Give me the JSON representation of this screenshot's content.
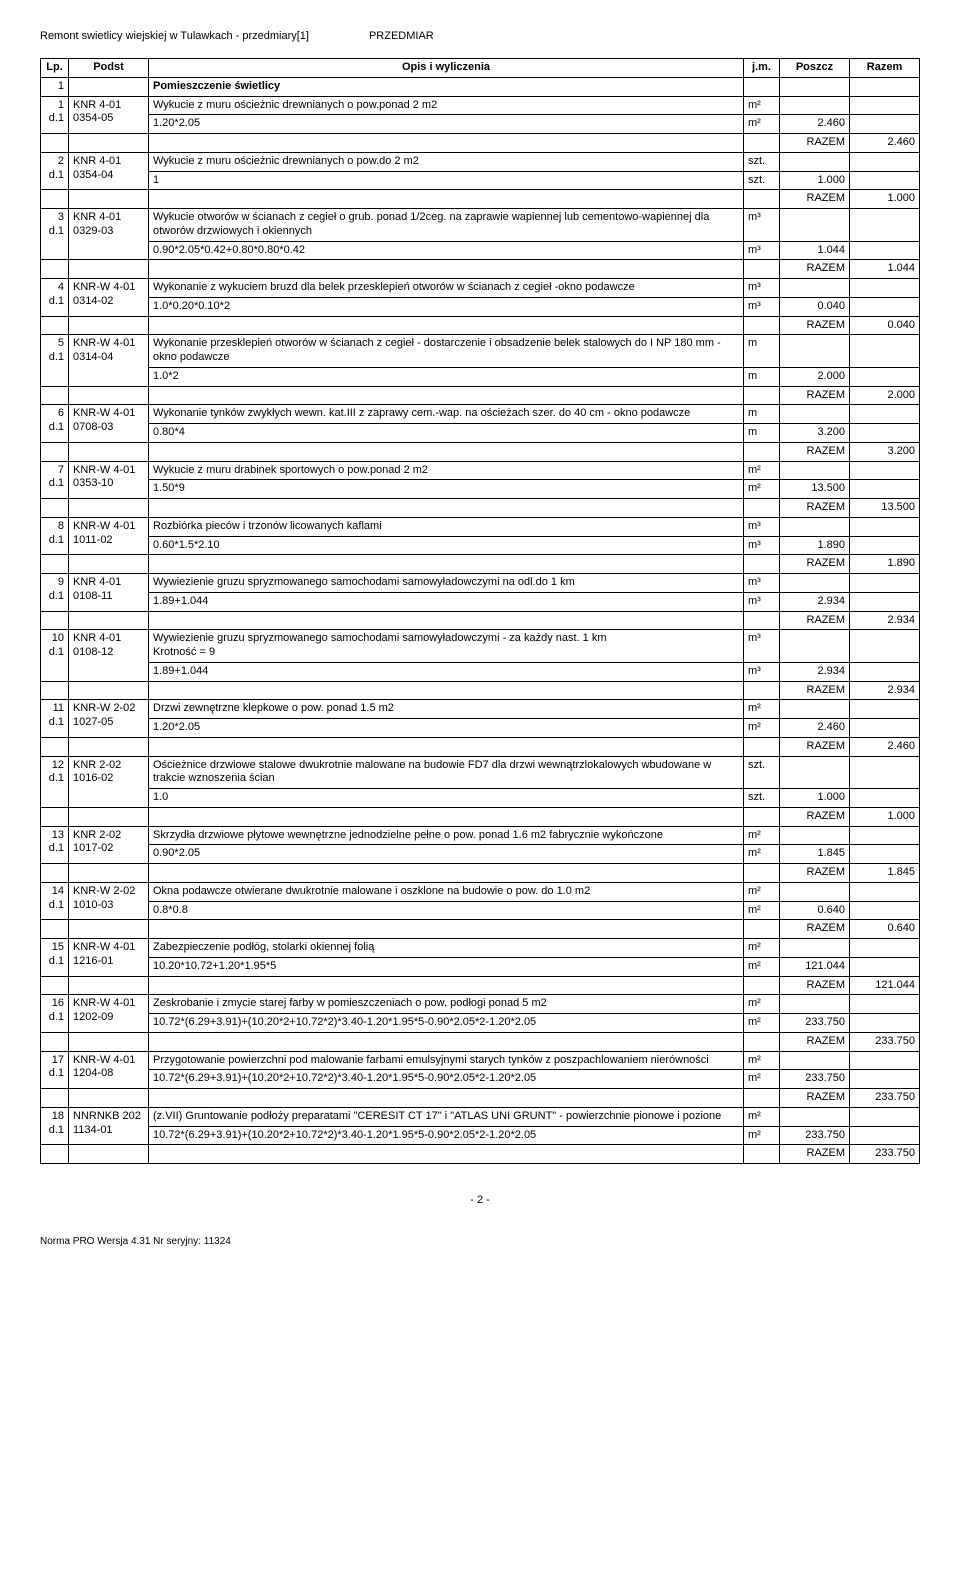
{
  "header": {
    "left": "Remont swietlicy wiejskiej w Tulawkach - przedmiary[1]",
    "right": "PRZEDMIAR"
  },
  "columns": [
    "Lp.",
    "Podst",
    "Opis i wyliczenia",
    "j.m.",
    "Poszcz",
    "Razem"
  ],
  "section": {
    "lp": "1",
    "title": "Pomieszczenie świetlicy"
  },
  "rows": [
    {
      "lp": "1",
      "dgroup": "d.1",
      "podst": "KNR 4-01 0354-05",
      "desc": "Wykucie z muru ościeżnic drewnianych o pow.ponad 2 m2",
      "jm": "m²",
      "calcs": [
        {
          "expr": "1.20*2.05",
          "jm": "m²",
          "val": "2.460"
        }
      ],
      "razem": "2.460"
    },
    {
      "lp": "2",
      "dgroup": "d.1",
      "podst": "KNR 4-01 0354-04",
      "desc": "Wykucie z muru ościeżnic drewnianych o pow.do 2 m2",
      "jm": "szt.",
      "calcs": [
        {
          "expr": "1",
          "jm": "szt.",
          "val": "1.000"
        }
      ],
      "razem": "1.000"
    },
    {
      "lp": "3",
      "dgroup": "d.1",
      "podst": "KNR 4-01 0329-03",
      "desc": "Wykucie otworów w ścianach z cegieł o grub. ponad 1/2ceg. na zaprawie wapiennej lub cementowo-wapiennej dla otworów drzwiowych i okiennych",
      "jm": "m³",
      "calcs": [
        {
          "expr": "0.90*2.05*0.42+0.80*0.80*0.42",
          "jm": "m³",
          "val": "1.044"
        }
      ],
      "razem": "1.044"
    },
    {
      "lp": "4",
      "dgroup": "d.1",
      "podst": "KNR-W 4-01 0314-02",
      "desc": "Wykonanie z wykuciem bruzd dla belek przesklepień otworów w ścianach z cegieł -okno podawcze",
      "jm": "m³",
      "calcs": [
        {
          "expr": "1.0*0.20*0.10*2",
          "jm": "m³",
          "val": "0.040"
        }
      ],
      "razem": "0.040"
    },
    {
      "lp": "5",
      "dgroup": "d.1",
      "podst": "KNR-W 4-01 0314-04",
      "desc": "Wykonanie przesklepień otworów w ścianach z cegieł - dostarczenie i obsadzenie belek stalowych do I NP 180 mm - okno podawcze",
      "jm": "m",
      "calcs": [
        {
          "expr": "1.0*2",
          "jm": "m",
          "val": "2.000"
        }
      ],
      "razem": "2.000"
    },
    {
      "lp": "6",
      "dgroup": "d.1",
      "podst": "KNR-W 4-01 0708-03",
      "desc": "Wykonanie tynków zwykłych wewn. kat.III z zaprawy cem.-wap. na ościeżach szer. do 40 cm - okno podawcze",
      "jm": "m",
      "calcs": [
        {
          "expr": "0.80*4",
          "jm": "m",
          "val": "3.200"
        }
      ],
      "razem": "3.200"
    },
    {
      "lp": "7",
      "dgroup": "d.1",
      "podst": "KNR-W 4-01 0353-10",
      "desc": "Wykucie z muru drabinek  sportowych  o pow.ponad 2 m2",
      "jm": "m²",
      "calcs": [
        {
          "expr": "1.50*9",
          "jm": "m²",
          "val": "13.500"
        }
      ],
      "razem": "13.500"
    },
    {
      "lp": "8",
      "dgroup": "d.1",
      "podst": "KNR-W 4-01 1011-02",
      "desc": "Rozbiórka pieców i trzonów licowanych kaflami",
      "jm": "m³",
      "calcs": [
        {
          "expr": "0.60*1.5*2.10",
          "jm": "m³",
          "val": "1.890"
        }
      ],
      "razem": "1.890"
    },
    {
      "lp": "9",
      "dgroup": "d.1",
      "podst": "KNR 4-01 0108-11",
      "desc": "Wywiezienie gruzu spryzmowanego samochodami samowyładowczymi na odl.do 1 km",
      "jm": "m³",
      "calcs": [
        {
          "expr": "1.89+1.044",
          "jm": "m³",
          "val": "2.934"
        }
      ],
      "razem": "2.934"
    },
    {
      "lp": "10",
      "dgroup": "d.1",
      "podst": "KNR 4-01 0108-12",
      "desc": "Wywiezienie gruzu spryzmowanego samochodami samowyładowczymi - za każdy nast. 1 km\nKrotność = 9",
      "jm": "m³",
      "calcs": [
        {
          "expr": "1.89+1.044",
          "jm": "m³",
          "val": "2.934"
        }
      ],
      "razem": "2.934"
    },
    {
      "lp": "11",
      "dgroup": "d.1",
      "podst": "KNR-W 2-02 1027-05",
      "desc": "Drzwi zewnętrzne klepkowe o pow. ponad 1.5 m2",
      "jm": "m²",
      "calcs": [
        {
          "expr": "1.20*2.05",
          "jm": "m²",
          "val": "2.460"
        }
      ],
      "razem": "2.460"
    },
    {
      "lp": "12",
      "dgroup": "d.1",
      "podst": "KNR 2-02 1016-02",
      "desc": "Ościeżnice drzwiowe stalowe dwukrotnie malowane na budowie FD7 dla drzwi wewnątrzlokalowych wbudowane w trakcie wznoszenia ścian",
      "jm": "szt.",
      "calcs": [
        {
          "expr": "1.0",
          "jm": "szt.",
          "val": "1.000"
        }
      ],
      "razem": "1.000"
    },
    {
      "lp": "13",
      "dgroup": "d.1",
      "podst": "KNR 2-02 1017-02",
      "desc": "Skrzydła drzwiowe płytowe wewnętrzne jednodzielne pełne o pow. ponad 1.6 m2 fabrycznie wykończone",
      "jm": "m²",
      "calcs": [
        {
          "expr": "0.90*2.05",
          "jm": "m²",
          "val": "1.845"
        }
      ],
      "razem": "1.845"
    },
    {
      "lp": "14",
      "dgroup": "d.1",
      "podst": "KNR-W 2-02 1010-03",
      "desc": "Okna podawcze otwierane dwukrotnie malowane i oszklone na budowie o pow. do 1.0 m2",
      "jm": "m²",
      "calcs": [
        {
          "expr": "0.8*0.8",
          "jm": "m²",
          "val": "0.640"
        }
      ],
      "razem": "0.640"
    },
    {
      "lp": "15",
      "dgroup": "d.1",
      "podst": "KNR-W 4-01 1216-01",
      "desc": "Zabezpieczenie podłóg, stolarki  okiennej  folią",
      "jm": "m²",
      "calcs": [
        {
          "expr": "10.20*10.72+1.20*1.95*5",
          "jm": "m²",
          "val": "121.044"
        }
      ],
      "razem": "121.044"
    },
    {
      "lp": "16",
      "dgroup": "d.1",
      "podst": "KNR-W 4-01 1202-09",
      "desc": "Zeskrobanie i zmycie starej farby w pomieszczeniach o pow. podłogi ponad 5 m2",
      "jm": "m²",
      "calcs": [
        {
          "expr": "10.72*(6.29+3.91)+(10.20*2+10.72*2)*3.40-1.20*1.95*5-0.90*2.05*2-1.20*2.05",
          "jm": "m²",
          "val": "233.750"
        }
      ],
      "razem": "233.750"
    },
    {
      "lp": "17",
      "dgroup": "d.1",
      "podst": "KNR-W 4-01 1204-08",
      "desc": "Przygotowanie powierzchni pod malowanie farbami emulsyjnymi starych tynków z poszpachlowaniem nierówności",
      "jm": "m²",
      "calcs": [
        {
          "expr": "10.72*(6.29+3.91)+(10.20*2+10.72*2)*3.40-1.20*1.95*5-0.90*2.05*2-1.20*2.05",
          "jm": "m²",
          "val": "233.750"
        }
      ],
      "razem": "233.750"
    },
    {
      "lp": "18",
      "dgroup": "d.1",
      "podst": "NNRNKB 202 1134-01",
      "desc": "(z.VII) Gruntowanie podłoży preparatami \"CERESIT CT 17\" i \"ATLAS UNI GRUNT\" - powierzchnie pionowe i pozione",
      "jm": "m²",
      "calcs": [
        {
          "expr": "10.72*(6.29+3.91)+(10.20*2+10.72*2)*3.40-1.20*1.95*5-0.90*2.05*2-1.20*2.05",
          "jm": "m²",
          "val": "233.750"
        }
      ],
      "razem": "233.750"
    }
  ],
  "razemLabel": "RAZEM",
  "pageNumber": "- 2 -",
  "footer": "Norma PRO Wersja 4.31 Nr seryjny: 11324"
}
